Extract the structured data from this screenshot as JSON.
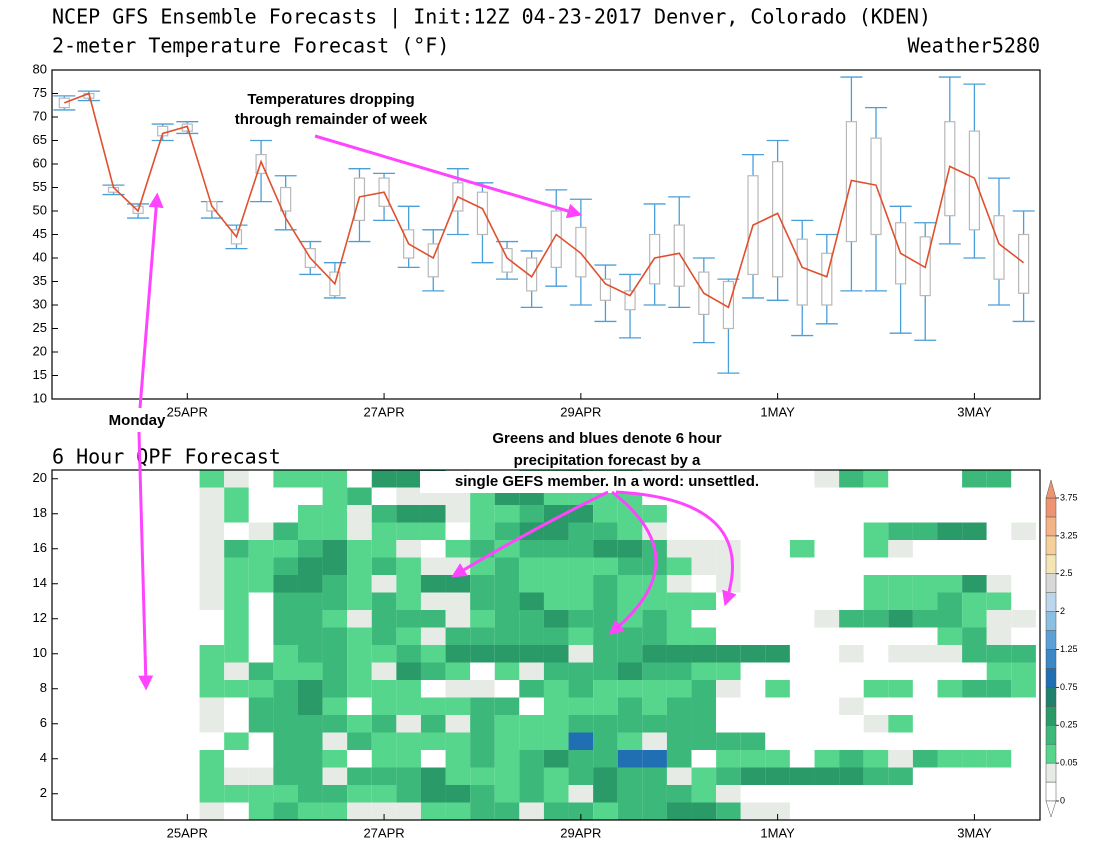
{
  "header": {
    "title": "NCEP GFS Ensemble Forecasts | Init:12Z 04-23-2017 Denver, Colorado (KDEN)",
    "credit": "Weather5280"
  },
  "chart_data": [
    {
      "type": "box",
      "title": "2-meter Temperature Forecast (°F)",
      "x": [
        -30,
        -24,
        -18,
        -12,
        -6,
        0,
        6,
        12,
        18,
        24,
        30,
        36,
        42,
        48,
        54,
        60,
        66,
        72,
        78,
        84,
        90,
        96,
        102,
        108,
        114,
        120,
        126,
        132,
        138,
        144,
        150,
        156,
        162,
        168,
        174,
        180,
        186,
        192,
        198,
        204
      ],
      "values": [
        73,
        75,
        55,
        50,
        66.5,
        68,
        51,
        44.5,
        60.5,
        48.5,
        40,
        34.5,
        53,
        54,
        43,
        40,
        53,
        50.5,
        40,
        36,
        45,
        41,
        34.5,
        32,
        40,
        41,
        32.5,
        29.5,
        47,
        49.5,
        38,
        36,
        56.5,
        55.5,
        41,
        38,
        59.5,
        57,
        43,
        39
      ],
      "low": [
        71.5,
        73.5,
        53.5,
        48.5,
        65,
        66.5,
        48.5,
        42,
        52,
        46,
        36.5,
        31.5,
        43.5,
        48,
        38,
        33,
        45,
        39,
        35.5,
        29.5,
        34,
        30,
        26.5,
        23,
        30,
        29.5,
        22,
        15.5,
        31.5,
        31,
        23.5,
        26,
        33,
        33,
        24,
        22.5,
        43,
        40,
        30,
        26.5
      ],
      "q1": [
        72,
        74,
        54,
        49.5,
        66,
        67,
        50,
        43,
        58,
        50,
        38,
        32,
        48,
        51,
        40,
        36,
        50,
        45,
        37,
        33,
        38,
        36,
        31,
        29,
        34.5,
        34,
        28,
        25,
        36.5,
        36,
        30,
        30,
        43.5,
        45,
        34.5,
        32,
        49,
        46,
        35.5,
        32.5
      ],
      "q3": [
        74,
        75,
        55,
        51,
        68,
        68.5,
        52,
        46,
        62,
        55,
        42,
        37,
        57,
        57,
        46,
        43,
        56,
        54,
        42,
        40,
        50,
        46.5,
        35.5,
        33,
        45,
        47,
        37,
        35,
        57.5,
        60.5,
        44,
        41,
        69,
        65.5,
        47.5,
        44.5,
        69,
        67,
        49,
        45
      ],
      "high": [
        74.5,
        75.5,
        55.5,
        51.5,
        68.5,
        69,
        52,
        47,
        65,
        57.5,
        43.5,
        39,
        59,
        58,
        51,
        46,
        59,
        56,
        43.5,
        41.5,
        54.5,
        52.5,
        38.5,
        36.5,
        51.5,
        53,
        40,
        35.5,
        62,
        65,
        48,
        45,
        78.5,
        72,
        51,
        47.5,
        78.5,
        77,
        57,
        50
      ],
      "line_color": "#e0502e",
      "box_color": "#b8b8b8",
      "whisker_color": "#4a9fd8",
      "xlim": [
        -33,
        208
      ],
      "xticks": [
        {
          "value": 0,
          "label": "25APR"
        },
        {
          "value": 48,
          "label": "27APR"
        },
        {
          "value": 96,
          "label": "29APR"
        },
        {
          "value": 144,
          "label": "1MAY"
        },
        {
          "value": 192,
          "label": "3MAY"
        }
      ],
      "ylim": [
        10,
        80
      ],
      "yticks": [
        10,
        15,
        20,
        25,
        30,
        35,
        40,
        45,
        50,
        55,
        60,
        65,
        70,
        75,
        80
      ],
      "annotations": [
        [
          "Temperatures dropping",
          "through remainder of week"
        ],
        [
          "Monday"
        ]
      ]
    },
    {
      "type": "heatmap",
      "title": "6 Hour QPF Forecast",
      "x": [
        6,
        12,
        18,
        24,
        30,
        36,
        42,
        48,
        54,
        60,
        66,
        72,
        78,
        84,
        90,
        96,
        102,
        108,
        114,
        120,
        126,
        132,
        138,
        144,
        150,
        156,
        162,
        168,
        174,
        180,
        186,
        192,
        198,
        204
      ],
      "y": [
        1,
        2,
        3,
        4,
        5,
        6,
        7,
        8,
        9,
        10,
        11,
        12,
        13,
        14,
        15,
        16,
        17,
        18,
        19,
        20
      ],
      "z": [
        [
          0.03,
          0,
          0.07,
          0.15,
          0.07,
          0.07,
          0.03,
          0.03,
          0.03,
          0.07,
          0.07,
          0.15,
          0.15,
          0.03,
          0.15,
          0.15,
          0.07,
          0.15,
          0.15,
          0.3,
          0.3,
          0.15,
          0.03,
          0.03,
          0,
          0,
          0,
          0,
          0,
          0,
          0,
          0,
          0,
          0
        ],
        [
          0.07,
          0.07,
          0.07,
          0.07,
          0.15,
          0.15,
          0.07,
          0.07,
          0.15,
          0.3,
          0.3,
          0.15,
          0.07,
          0.15,
          0.07,
          0.03,
          0.3,
          0.15,
          0.15,
          0.15,
          0.07,
          0.03,
          0,
          0,
          0,
          0,
          0,
          0,
          0,
          0,
          0,
          0,
          0,
          0
        ],
        [
          0.07,
          0.03,
          0.03,
          0.15,
          0.15,
          0.03,
          0.15,
          0.15,
          0.15,
          0.3,
          0.07,
          0.07,
          0.07,
          0.15,
          0.07,
          0.15,
          0.3,
          0.15,
          0.15,
          0.03,
          0.07,
          0.15,
          0.3,
          0.3,
          0.3,
          0.3,
          0.3,
          0.15,
          0.15,
          0,
          0,
          0,
          0,
          0
        ],
        [
          0.07,
          0,
          0,
          0.15,
          0.15,
          0.07,
          0,
          0.07,
          0.07,
          0,
          0.07,
          0.15,
          0.07,
          0.15,
          0.3,
          0.15,
          0.15,
          0.9,
          0.9,
          0.15,
          0,
          0.07,
          0.07,
          0.07,
          0,
          0.07,
          0.15,
          0.07,
          0.03,
          0.15,
          0.07,
          0.07,
          0.07,
          0
        ],
        [
          0,
          0.07,
          0,
          0.15,
          0.15,
          0.03,
          0.15,
          0.07,
          0.07,
          0.07,
          0.07,
          0.15,
          0.07,
          0.07,
          0.07,
          0.9,
          0.15,
          0.07,
          0.03,
          0.15,
          0.15,
          0.15,
          0.15,
          0,
          0,
          0,
          0,
          0,
          0,
          0,
          0,
          0,
          0,
          0
        ],
        [
          0.03,
          0,
          0.15,
          0.15,
          0.15,
          0.15,
          0.07,
          0.15,
          0.03,
          0.15,
          0.03,
          0.15,
          0.07,
          0.07,
          0.07,
          0.15,
          0.15,
          0.15,
          0.15,
          0.15,
          0.15,
          0,
          0,
          0,
          0,
          0,
          0,
          0.03,
          0.07,
          0,
          0,
          0,
          0,
          0
        ],
        [
          0.03,
          0,
          0.15,
          0.15,
          0.3,
          0.07,
          0,
          0.07,
          0.07,
          0.07,
          0.07,
          0.15,
          0.15,
          0,
          0.07,
          0.07,
          0.07,
          0.15,
          0.07,
          0.15,
          0.15,
          0,
          0,
          0,
          0,
          0,
          0.03,
          0,
          0,
          0,
          0,
          0,
          0,
          0
        ],
        [
          0.07,
          0.07,
          0.07,
          0.15,
          0.3,
          0.15,
          0.07,
          0.07,
          0.07,
          0,
          0.03,
          0.03,
          0,
          0.15,
          0.07,
          0.15,
          0.07,
          0.07,
          0.07,
          0.07,
          0.15,
          0.03,
          0,
          0.07,
          0,
          0,
          0,
          0.07,
          0.07,
          0,
          0.07,
          0.15,
          0.15,
          0.07
        ],
        [
          0.07,
          0.03,
          0.15,
          0.07,
          0.07,
          0.15,
          0.07,
          0.03,
          0.3,
          0.15,
          0.07,
          0,
          0.07,
          0.03,
          0.15,
          0.15,
          0.15,
          0.3,
          0.15,
          0.15,
          0.07,
          0.07,
          0,
          0,
          0,
          0,
          0,
          0,
          0,
          0,
          0,
          0,
          0.07,
          0.07
        ],
        [
          0.07,
          0.07,
          0,
          0.07,
          0.15,
          0.15,
          0.07,
          0.07,
          0.15,
          0.07,
          0.3,
          0.3,
          0.3,
          0.3,
          0.3,
          0.03,
          0.15,
          0.15,
          0.3,
          0.3,
          0.3,
          0.3,
          0.3,
          0.3,
          0,
          0,
          0.03,
          0,
          0.03,
          0.03,
          0.03,
          0.15,
          0.15,
          0.15
        ],
        [
          0,
          0.07,
          0,
          0.15,
          0.15,
          0.15,
          0.07,
          0.15,
          0.07,
          0.03,
          0.15,
          0.15,
          0.15,
          0.15,
          0.15,
          0.07,
          0.15,
          0.15,
          0.15,
          0.07,
          0.07,
          0,
          0,
          0,
          0,
          0,
          0,
          0,
          0,
          0,
          0.07,
          0.15,
          0.03,
          0
        ],
        [
          0,
          0.07,
          0,
          0.15,
          0.15,
          0.07,
          0.03,
          0.15,
          0.15,
          0.15,
          0.03,
          0.07,
          0.15,
          0.15,
          0.3,
          0.15,
          0.15,
          0.07,
          0.15,
          0.07,
          0,
          0,
          0,
          0,
          0,
          0.03,
          0.15,
          0.15,
          0.3,
          0.15,
          0.15,
          0.07,
          0.03,
          0.03
        ],
        [
          0.03,
          0.07,
          0,
          0.15,
          0.15,
          0.15,
          0.07,
          0.15,
          0.07,
          0.03,
          0.03,
          0.15,
          0.15,
          0.3,
          0.07,
          0.07,
          0.15,
          0.07,
          0.07,
          0.07,
          0.07,
          0,
          0,
          0,
          0,
          0,
          0,
          0.07,
          0.07,
          0.07,
          0.15,
          0.07,
          0.07,
          0
        ],
        [
          0.03,
          0.07,
          0.07,
          0.3,
          0.3,
          0.15,
          0.07,
          0.03,
          0.07,
          0.3,
          0.3,
          0.15,
          0.15,
          0.07,
          0.07,
          0.07,
          0.15,
          0.07,
          0.07,
          0.03,
          0,
          0.03,
          0,
          0,
          0,
          0,
          0,
          0.07,
          0.07,
          0.07,
          0.07,
          0.3,
          0.03,
          0
        ],
        [
          0.03,
          0.07,
          0.07,
          0.15,
          0.3,
          0.3,
          0.07,
          0.15,
          0.07,
          0.03,
          0.03,
          0.07,
          0.15,
          0.07,
          0.07,
          0.07,
          0.07,
          0.15,
          0.15,
          0.07,
          0.03,
          0.03,
          0,
          0,
          0,
          0,
          0,
          0,
          0,
          0,
          0,
          0,
          0,
          0
        ],
        [
          0.03,
          0.15,
          0.07,
          0.07,
          0.15,
          0.3,
          0.07,
          0.07,
          0.03,
          0,
          0.07,
          0.15,
          0.07,
          0.15,
          0.15,
          0.15,
          0.3,
          0.3,
          0.15,
          0.03,
          0.03,
          0.03,
          0,
          0,
          0.07,
          0,
          0,
          0.07,
          0.03,
          0,
          0,
          0,
          0,
          0
        ],
        [
          0.03,
          0,
          0.03,
          0.15,
          0.07,
          0.07,
          0.03,
          0.07,
          0.07,
          0.07,
          0,
          0.07,
          0.15,
          0.3,
          0.3,
          0.15,
          0.15,
          0.07,
          0.03,
          0,
          0,
          0,
          0,
          0,
          0,
          0,
          0,
          0.07,
          0.15,
          0.15,
          0.3,
          0.3,
          0,
          0.03
        ],
        [
          0.03,
          0.07,
          0,
          0,
          0.07,
          0.07,
          0.03,
          0.15,
          0.3,
          0.3,
          0.03,
          0.07,
          0.07,
          0.15,
          0.3,
          0.3,
          0.07,
          0.07,
          0.07,
          0,
          0,
          0,
          0,
          0,
          0,
          0,
          0,
          0,
          0,
          0,
          0,
          0,
          0,
          0
        ],
        [
          0.03,
          0.07,
          0,
          0,
          0,
          0.07,
          0.15,
          0,
          0.03,
          0.03,
          0.03,
          0.07,
          0.3,
          0.3,
          0.07,
          0.07,
          0.07,
          0.07,
          0,
          0,
          0,
          0,
          0,
          0,
          0,
          0,
          0,
          0,
          0,
          0,
          0,
          0,
          0,
          0
        ],
        [
          0.07,
          0.03,
          0,
          0.07,
          0.07,
          0.07,
          0,
          0.3,
          0.3,
          0.3,
          0.03,
          0,
          0,
          0.07,
          0.07,
          0.15,
          0.07,
          0.07,
          0,
          0,
          0,
          0,
          0,
          0,
          0,
          0.03,
          0.15,
          0.07,
          0,
          0,
          0,
          0.15,
          0.15,
          0
        ]
      ],
      "xlim": [
        -33,
        208
      ],
      "xticks": [
        {
          "value": 0,
          "label": "25APR"
        },
        {
          "value": 48,
          "label": "27APR"
        },
        {
          "value": 96,
          "label": "29APR"
        },
        {
          "value": 144,
          "label": "1MAY"
        },
        {
          "value": 192,
          "label": "3MAY"
        }
      ],
      "ylim": [
        0.5,
        20.5
      ],
      "yticks": [
        2,
        4,
        6,
        8,
        10,
        12,
        14,
        16,
        18,
        20
      ],
      "colorbar": {
        "bounds": [
          0,
          0.01,
          0.05,
          0.1,
          0.25,
          0.5,
          0.75,
          1,
          1.25,
          1.5,
          2,
          2.25,
          2.5,
          3,
          3.25,
          3.5,
          3.75
        ],
        "colors": [
          "#ffffff",
          "#e6ebe6",
          "#56d68c",
          "#3cb87a",
          "#2a9a68",
          "#1f8070",
          "#1f6fb2",
          "#3a88c8",
          "#5ba0d8",
          "#8cbfe4",
          "#bcd6ec",
          "#d8d8d8",
          "#f3e6b4",
          "#f6d09a",
          "#f4b486",
          "#ef9470"
        ],
        "ticks": [
          0,
          0.05,
          0.25,
          0.75,
          1.25,
          2,
          2.5,
          3.25,
          3.75
        ]
      },
      "annotations": [
        [
          "Greens and blues denote 6 hour",
          "precipitation forecast by a",
          "single GEFS member. In a word: unsettled."
        ]
      ]
    }
  ]
}
